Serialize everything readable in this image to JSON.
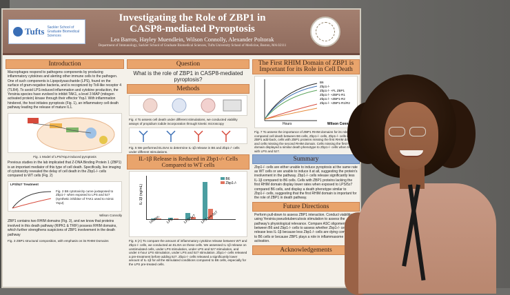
{
  "poster": {
    "logo": {
      "name": "Tufts",
      "subtitle": "Sackler School of Graduate Biomedical Sciences"
    },
    "title": "Investigating the Role of ZBP1 in CASP8-mediated Pyroptosis",
    "authors": "Lea Barros, Hayley Muendlein, Wilson Connolly, Alexander Poltorak",
    "affiliation": "Department of Immunology, Sackler School of Graduate Biomedical Sciences, Tufts University School of Medicine, Boston, MA 02111",
    "sections": {
      "introduction": {
        "title": "Introduction",
        "text": "Macrophages respond to pathogens components by producing inflammatory cytokines and alerting other immune cells to the pathogen. One of such components is Lipopolysaccharide (LPS), found on the surface of gram-negative bacteria, and is recognized by Toll-like receptor 4 (TLR4). To avoid LPS-induced inflammation and cytokine production, the Yersinia species have evolved to inhibit TAK1, a level 3 MAP (mitogen activated protein) kinase through their effector YopJ. With inflammation hindered, the host initiates pyroptosis (Fig. 1), an inflammatory cell death pathway leading the release of mature IL1.",
        "fig1_caption": "Fig. 1 Model of LPS/YopJ-induced pyroptosis",
        "text2": "Previous studies in the lab implicated that Z-DNA Binding Protein 1 (ZBP1) is an important mediator of this type of cell death. Specifically, live imaging of cytotoxicity revealed the delay of cell death in the Zbp1-/- cells compared to WT cells (Fig. 2)",
        "fig2_title": "LPS/5z7 Treatment",
        "fig2_caption": "Fig. 2 B6 cytotoxicity curve juxtaposed to Zbp1-/- when exposed to LPS and 5z7 (synthetic inhibitor of TAK1 used to mimic YopJ)",
        "credit": "Wilson Connolly",
        "text3": "ZBP1 contains two RHIM domains (Fig. 3), and we know that proteins involved in this death pathway (RIPK1 & TRIF) possess RHIM domains, which further strengthens suspicions of ZBP1 involvement in the death pathway",
        "fig3_caption": "Fig. 3 ZBP1 structural composition, with emphasis on its RHIM Domains"
      },
      "question": {
        "title": "Question",
        "text": "What is the role of ZBP1 in CASP8-mediated pyroptosis?"
      },
      "methods": {
        "title": "Methods",
        "fig4_caption": "Fig. 4 To assess cell death under different stimulations, we conducted viability assays of propidium iodide incorporation through kinetic microscopy",
        "fig5_caption": "Fig. 5 We performed ELISAs to determine IL-1β release in B6 and Zbp1-/- cells under different stimulations."
      },
      "il1b": {
        "title": "IL-1β Release is Reduced in Zbp1-/- Cells Compared to WT cells",
        "ylabel": "IL-1β (ng/mL)",
        "legend": [
          "B6",
          "Zbp1-/-"
        ],
        "categories": [
          "Unstim.",
          "LPS",
          "LPS/5z7",
          "LPS pre-5z7"
        ],
        "fig6_caption": "Fig. 6 (A) To compare the amount of inflammatory cytokine release between WT and Zbp1-/- cells, we conducted an ELISA on these cells. We assessed IL-1β release on unstimulated cells, under LPS stimulation, under LPS and 5z7 stimulation, and under 4-hour LPS stimulation, under LPS and 5z7 stimulation. Zbp1-/- cells released a pre-treatment before adding 5z7. Zbp1-/- cells released a significantly lower amount of IL-1β for all the stimulated conditions compared to B6 cells, especially for the LPS pre-treated cells."
      },
      "rhim": {
        "title": "The First RHIM Domain of ZBP1 is Important for its Role in Cell Death",
        "ylabel": "% Cell Death",
        "xlabel": "Hours",
        "legend": [
          "B6",
          "Zbp1-/-",
          "Zbp1-/- +FL ZBP1",
          "Zbp1-/- +ZBP1-R1",
          "Zbp1-/- +ZBP1-R2",
          "Zbp1-/- +ZBP1-R1/R2"
        ],
        "credit": "Wilson Connolly",
        "fig7_caption": "Fig. 7 To assess the importance of ZBP1 RHIM domains for its role, we compared cell death between B6 cells, Zbp1-/- cells, Zbp1-/- cells with ZBP1 add-back, cells with ZBP1 proteins missing the first RHIM domain, and cells missing the second RHIM domain. Cells missing the first RHIM domain displayed a similar death phenotype to Zbp1-/- cells when treated with LPS and 5z7."
      },
      "summary": {
        "title": "Summary",
        "text": "Zbp1-/- cells are either unable to induce pyroptosis at the same rate as WT cells or are unable to induce it at all, suggesting the protein's involvement in the pathway. Zbp1-/- cells release significantly less IL-1β compared to B6 cells. Cells with ZBP1 proteins lacking the first RHIM domain display lower rates when exposed to LPS/5z7 compared B6 cells, and display a death phenotype similar to Zbp1-/- cells, suggesting that the first RHIM domain is important for the role of ZBP1 in death pathway."
      },
      "future": {
        "title": "Future Directions",
        "text": "Perform pull-down to assess ZBP1 interaction. Conduct viabilities using Yersinia pseudotuberculosis stimulation to assess the pathway's physiological relevance. Compare ASC oligomerization between B6 and Zbp1-/- cells to assess whether Zbp1-/- cells release less IL-1β because less Zbp1-/- cells are dying compared to B6 cells or because ZBP1 plays a role in inflammasome activation."
      },
      "acknowledgements": {
        "title": "Acknowledgements"
      }
    }
  },
  "chart_data": [
    {
      "type": "bar",
      "categories": [
        "Unstim.",
        "LPS",
        "LPS/5z7",
        "LPS pre-5z7"
      ],
      "series": [
        {
          "name": "B6",
          "values": [
            0.0,
            0.05,
            0.25,
            1.4
          ]
        },
        {
          "name": "Zbp1-/-",
          "values": [
            0.0,
            0.03,
            0.1,
            0.4
          ]
        }
      ],
      "ylabel": "IL-1β (ng/mL)"
    }
  ],
  "colors": {
    "header": "#8e6a5c",
    "section_orange": "#e9a46c",
    "section_blue": "#8eaad2",
    "bar_b6": "#4b9ea1",
    "bar_ko": "#e0735f"
  }
}
